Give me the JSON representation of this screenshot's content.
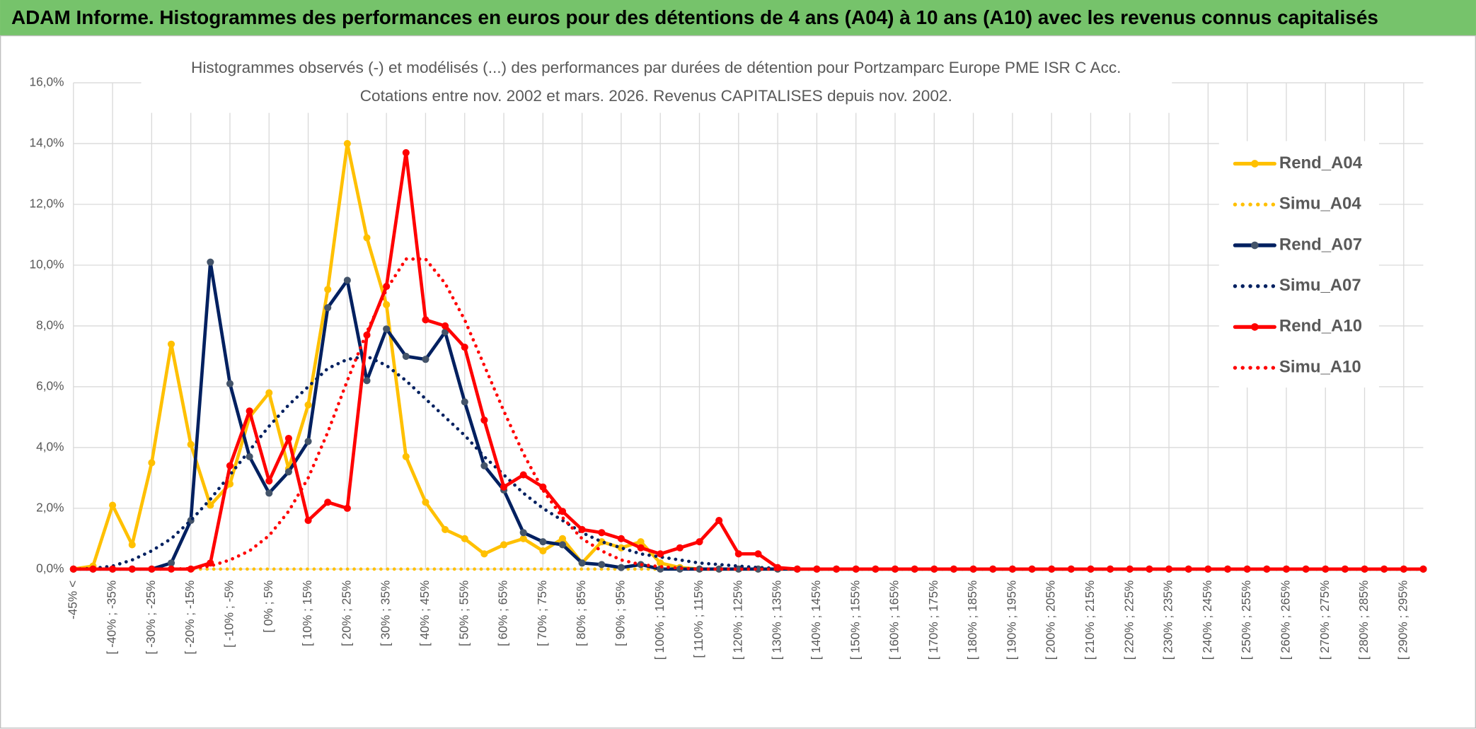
{
  "header": {
    "title": "ADAM Informe. Histogrammes des performances en euros pour des détentions de 4 ans (A04) à 10 ans (A10) avec les revenus connus capitalisés"
  },
  "chart_data": {
    "type": "line",
    "title": "Histogrammes observés (-) et modélisés (...) des performances par durées de détention pour Portzamparc Europe PME ISR C Acc.",
    "subtitle": "Cotations entre nov. 2002 et mars. 2026. Revenus CAPITALISES depuis nov. 2002.",
    "categories": [
      "-45% <",
      null,
      "[ -40% ; -35%",
      null,
      "[ -30% ; -25%",
      null,
      "[ -20% ; -15%",
      null,
      "[ -10% ; -5%",
      null,
      "[ 0% ; 5%",
      null,
      "[ 10% ; 15%",
      null,
      "[ 20% ; 25%",
      null,
      "[ 30% ; 35%",
      null,
      "[ 40% ; 45%",
      null,
      "[ 50% ; 55%",
      null,
      "[ 60% ; 65%",
      null,
      "[ 70% ; 75%",
      null,
      "[ 80% ; 85%",
      null,
      "[ 90% ; 95%",
      null,
      "[ 100% ; 105%",
      null,
      "[ 110% ; 115%",
      null,
      "[ 120% ; 125%",
      null,
      "[ 130% ; 135%",
      null,
      "[ 140% ; 145%",
      null,
      "[ 150% ; 155%",
      null,
      "[ 160% ; 165%",
      null,
      "[ 170% ; 175%",
      null,
      "[ 180% ; 185%",
      null,
      "[ 190% ; 195%",
      null,
      "[ 200% ; 205%",
      null,
      "[ 210% ; 215%",
      null,
      "[ 220% ; 225%",
      null,
      "[ 230% ; 235%",
      null,
      "[ 240% ; 245%",
      null,
      "[ 250% ; 255%",
      null,
      "[ 260% ; 265%",
      null,
      "[ 270% ; 275%",
      null,
      "[ 280% ; 285%",
      null,
      "[ 290% ; 295%",
      null
    ],
    "series": [
      {
        "name": "Rend_A04",
        "color": "#ffc000",
        "line_style": "solid",
        "marker_color": "#ffc000",
        "values": [
          0,
          0.1,
          2.1,
          0.8,
          3.5,
          7.4,
          4.1,
          2.1,
          2.8,
          5.0,
          5.8,
          3.3,
          5.4,
          9.2,
          14.0,
          10.9,
          8.7,
          3.7,
          2.2,
          1.3,
          1.0,
          0.5,
          0.8,
          1.0,
          0.6,
          1.0,
          0.2,
          0.9,
          0.7,
          0.9,
          0.2,
          0.05,
          0,
          0,
          0,
          0,
          0,
          0,
          0,
          0,
          0,
          0,
          0,
          0,
          0,
          0,
          0,
          0,
          0,
          0,
          0,
          0,
          0,
          0,
          0,
          0,
          0,
          0,
          0,
          0,
          0,
          0,
          0,
          0,
          0,
          0,
          0,
          0,
          0,
          0
        ]
      },
      {
        "name": "Simu_A04",
        "color": "#ffc000",
        "line_style": "dotted",
        "values": [
          0,
          0,
          0,
          0,
          0,
          0,
          0,
          0,
          0,
          0,
          0,
          0,
          0,
          0,
          0,
          0,
          0,
          0,
          0,
          0,
          0,
          0,
          0,
          0,
          0,
          0,
          0,
          0,
          0,
          0,
          0,
          0,
          0,
          0,
          0,
          0,
          0,
          0,
          0,
          0,
          0,
          0,
          0,
          0,
          0,
          0,
          0,
          0,
          0,
          0,
          0,
          0,
          0,
          0,
          0,
          0,
          0,
          0,
          0,
          0,
          0,
          0,
          0,
          0,
          0,
          0,
          0,
          0,
          0,
          0
        ]
      },
      {
        "name": "Rend_A07",
        "color": "#002060",
        "line_style": "solid",
        "marker_color": "#44546a",
        "values": [
          0,
          0,
          0,
          0,
          0,
          0.2,
          1.6,
          10.1,
          6.1,
          3.7,
          2.5,
          3.2,
          4.2,
          8.6,
          9.5,
          6.2,
          7.9,
          7.0,
          6.9,
          7.8,
          5.5,
          3.4,
          2.6,
          1.2,
          0.9,
          0.8,
          0.2,
          0.15,
          0.05,
          0.15,
          0,
          0,
          0,
          0,
          0,
          0,
          0,
          0,
          0,
          0,
          0,
          0,
          0,
          0,
          0,
          0,
          0,
          0,
          0,
          0,
          0,
          0,
          0,
          0,
          0,
          0,
          0,
          0,
          0,
          0,
          0,
          0,
          0,
          0,
          0,
          0,
          0,
          0,
          0,
          0
        ]
      },
      {
        "name": "Simu_A07",
        "color": "#002060",
        "line_style": "dotted",
        "values": [
          0,
          0.02,
          0.1,
          0.3,
          0.6,
          1.0,
          1.6,
          2.3,
          3.1,
          3.9,
          4.7,
          5.4,
          6.0,
          6.6,
          6.9,
          7.0,
          6.7,
          6.2,
          5.6,
          5.0,
          4.4,
          3.7,
          3.1,
          2.5,
          2.0,
          1.6,
          1.2,
          0.9,
          0.7,
          0.5,
          0.4,
          0.3,
          0.2,
          0.15,
          0.1,
          0.05,
          0.03,
          0,
          0,
          0,
          0,
          0,
          0,
          0,
          0,
          0,
          0,
          0,
          0,
          0,
          0,
          0,
          0,
          0,
          0,
          0,
          0,
          0,
          0,
          0,
          0,
          0,
          0,
          0,
          0,
          0,
          0,
          0,
          0,
          0
        ]
      },
      {
        "name": "Rend_A10",
        "color": "#ff0000",
        "line_style": "solid",
        "marker_color": "#ff0000",
        "values": [
          0,
          0,
          0,
          0,
          0,
          0,
          0,
          0.2,
          3.4,
          5.2,
          2.9,
          4.3,
          1.6,
          2.2,
          2.0,
          7.7,
          9.3,
          13.7,
          8.2,
          8.0,
          7.3,
          4.9,
          2.7,
          3.1,
          2.7,
          1.9,
          1.3,
          1.2,
          1.0,
          0.7,
          0.5,
          0.7,
          0.9,
          1.6,
          0.5,
          0.5,
          0.05,
          0,
          0,
          0,
          0,
          0,
          0,
          0,
          0,
          0,
          0,
          0,
          0,
          0,
          0,
          0,
          0,
          0,
          0,
          0,
          0,
          0,
          0,
          0,
          0,
          0,
          0,
          0,
          0,
          0,
          0,
          0,
          0,
          0
        ]
      },
      {
        "name": "Simu_A10",
        "color": "#ff0000",
        "line_style": "dotted",
        "values": [
          0,
          0,
          0,
          0,
          0,
          0,
          0.02,
          0.1,
          0.3,
          0.6,
          1.1,
          1.9,
          3.0,
          4.5,
          6.2,
          7.8,
          9.2,
          10.2,
          10.2,
          9.4,
          8.2,
          6.7,
          5.2,
          3.8,
          2.6,
          1.7,
          1.0,
          0.6,
          0.3,
          0.15,
          0.08,
          0.03,
          0,
          0,
          0,
          0,
          0,
          0,
          0,
          0,
          0,
          0,
          0,
          0,
          0,
          0,
          0,
          0,
          0,
          0,
          0,
          0,
          0,
          0,
          0,
          0,
          0,
          0,
          0,
          0,
          0,
          0,
          0,
          0,
          0,
          0,
          0,
          0,
          0,
          0
        ]
      }
    ],
    "ylim": [
      0,
      16
    ],
    "yticks": [
      {
        "value": 0,
        "label": "0,0%"
      },
      {
        "value": 2,
        "label": "2,0%"
      },
      {
        "value": 4,
        "label": "4,0%"
      },
      {
        "value": 6,
        "label": "6,0%"
      },
      {
        "value": 8,
        "label": "8,0%"
      },
      {
        "value": 10,
        "label": "10,0%"
      },
      {
        "value": 12,
        "label": "12,0%"
      },
      {
        "value": 14,
        "label": "14,0%"
      },
      {
        "value": 16,
        "label": "16,0%"
      }
    ],
    "grid": true,
    "legend": "right"
  }
}
